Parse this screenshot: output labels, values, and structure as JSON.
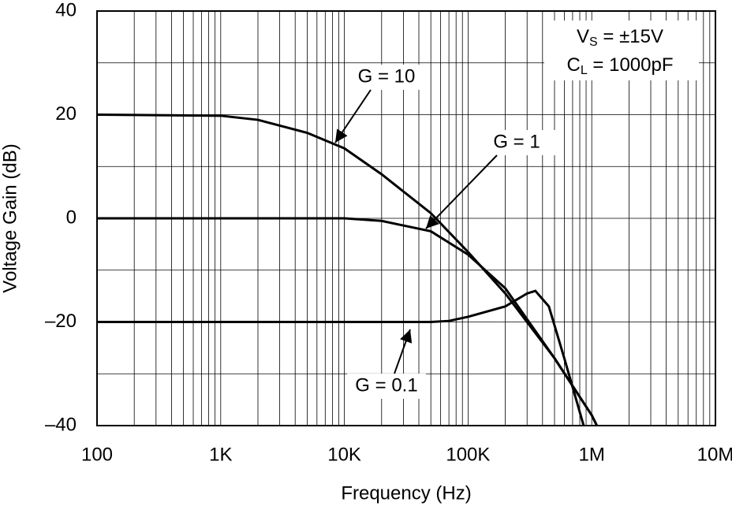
{
  "chart_data": {
    "type": "line",
    "x_label": "Frequency (Hz)",
    "y_label": "Voltage Gain (dB)",
    "xscale": "log",
    "grid": true,
    "xlim": [
      100,
      10000000
    ],
    "xticks": [
      {
        "value": 100,
        "label": "100"
      },
      {
        "value": 1000,
        "label": "1K"
      },
      {
        "value": 10000,
        "label": "10K"
      },
      {
        "value": 100000,
        "label": "100K"
      },
      {
        "value": 1000000,
        "label": "1M"
      },
      {
        "value": 10000000,
        "label": "10M"
      }
    ],
    "ylim": [
      -40,
      40
    ],
    "yticks": [
      40,
      20,
      0,
      {
        "value": -20,
        "label": "–20"
      },
      {
        "value": -40,
        "label": "–40"
      }
    ],
    "y_minor_grid": [
      30,
      10,
      -10,
      -30
    ],
    "series": [
      {
        "name": "G = 10",
        "color": "#000000",
        "x": [
          100,
          1000,
          2000,
          5000,
          10000,
          20000,
          50000,
          100000,
          200000,
          500000,
          1000000,
          1100000
        ],
        "values": [
          20,
          19.8,
          19,
          16.5,
          13.5,
          8.5,
          1,
          -6.5,
          -14.5,
          -27,
          -38,
          -40
        ]
      },
      {
        "name": "G = 1",
        "color": "#000000",
        "x": [
          100,
          1000,
          10000,
          20000,
          50000,
          100000,
          200000,
          500000,
          1000000,
          1100000
        ],
        "values": [
          0,
          0,
          0,
          -0.5,
          -2.5,
          -7,
          -13.5,
          -27,
          -38,
          -40
        ]
      },
      {
        "name": "G = 0.1",
        "color": "#000000",
        "x": [
          100,
          10000,
          50000,
          70000,
          100000,
          200000,
          300000,
          350000,
          450000,
          600000,
          860000
        ],
        "values": [
          -20,
          -20,
          -20,
          -19.8,
          -19,
          -17,
          -14.5,
          -14,
          -17,
          -27,
          -40
        ]
      }
    ],
    "conditions": [
      {
        "main": "V",
        "sub": "S",
        "rest": " = ±15V"
      },
      {
        "main": "C",
        "sub": "L",
        "rest": " = 1000pF"
      }
    ]
  }
}
